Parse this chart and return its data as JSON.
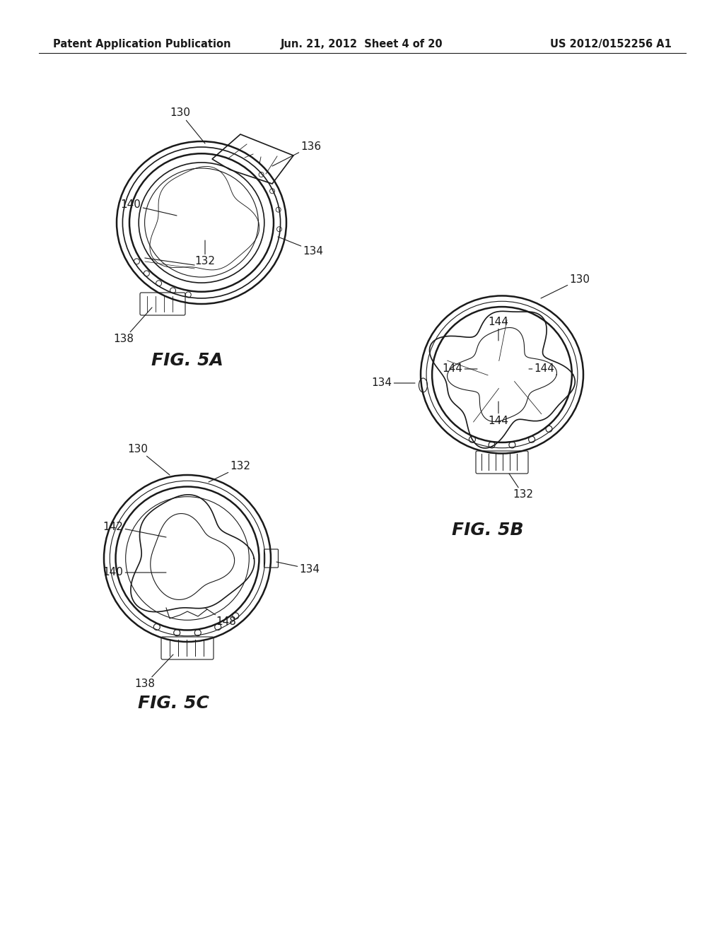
{
  "bg_color": "#ffffff",
  "header_left": "Patent Application Publication",
  "header_mid": "Jun. 21, 2012  Sheet 4 of 20",
  "header_right": "US 2012/0152256 A1",
  "fig5a_label": "FIG. 5A",
  "fig5b_label": "FIG. 5B",
  "fig5c_label": "FIG. 5C",
  "line_color": "#1a1a1a",
  "text_color": "#1a1a1a",
  "header_fontsize": 10.5,
  "label_fontsize": 18,
  "ref_fontsize": 11
}
